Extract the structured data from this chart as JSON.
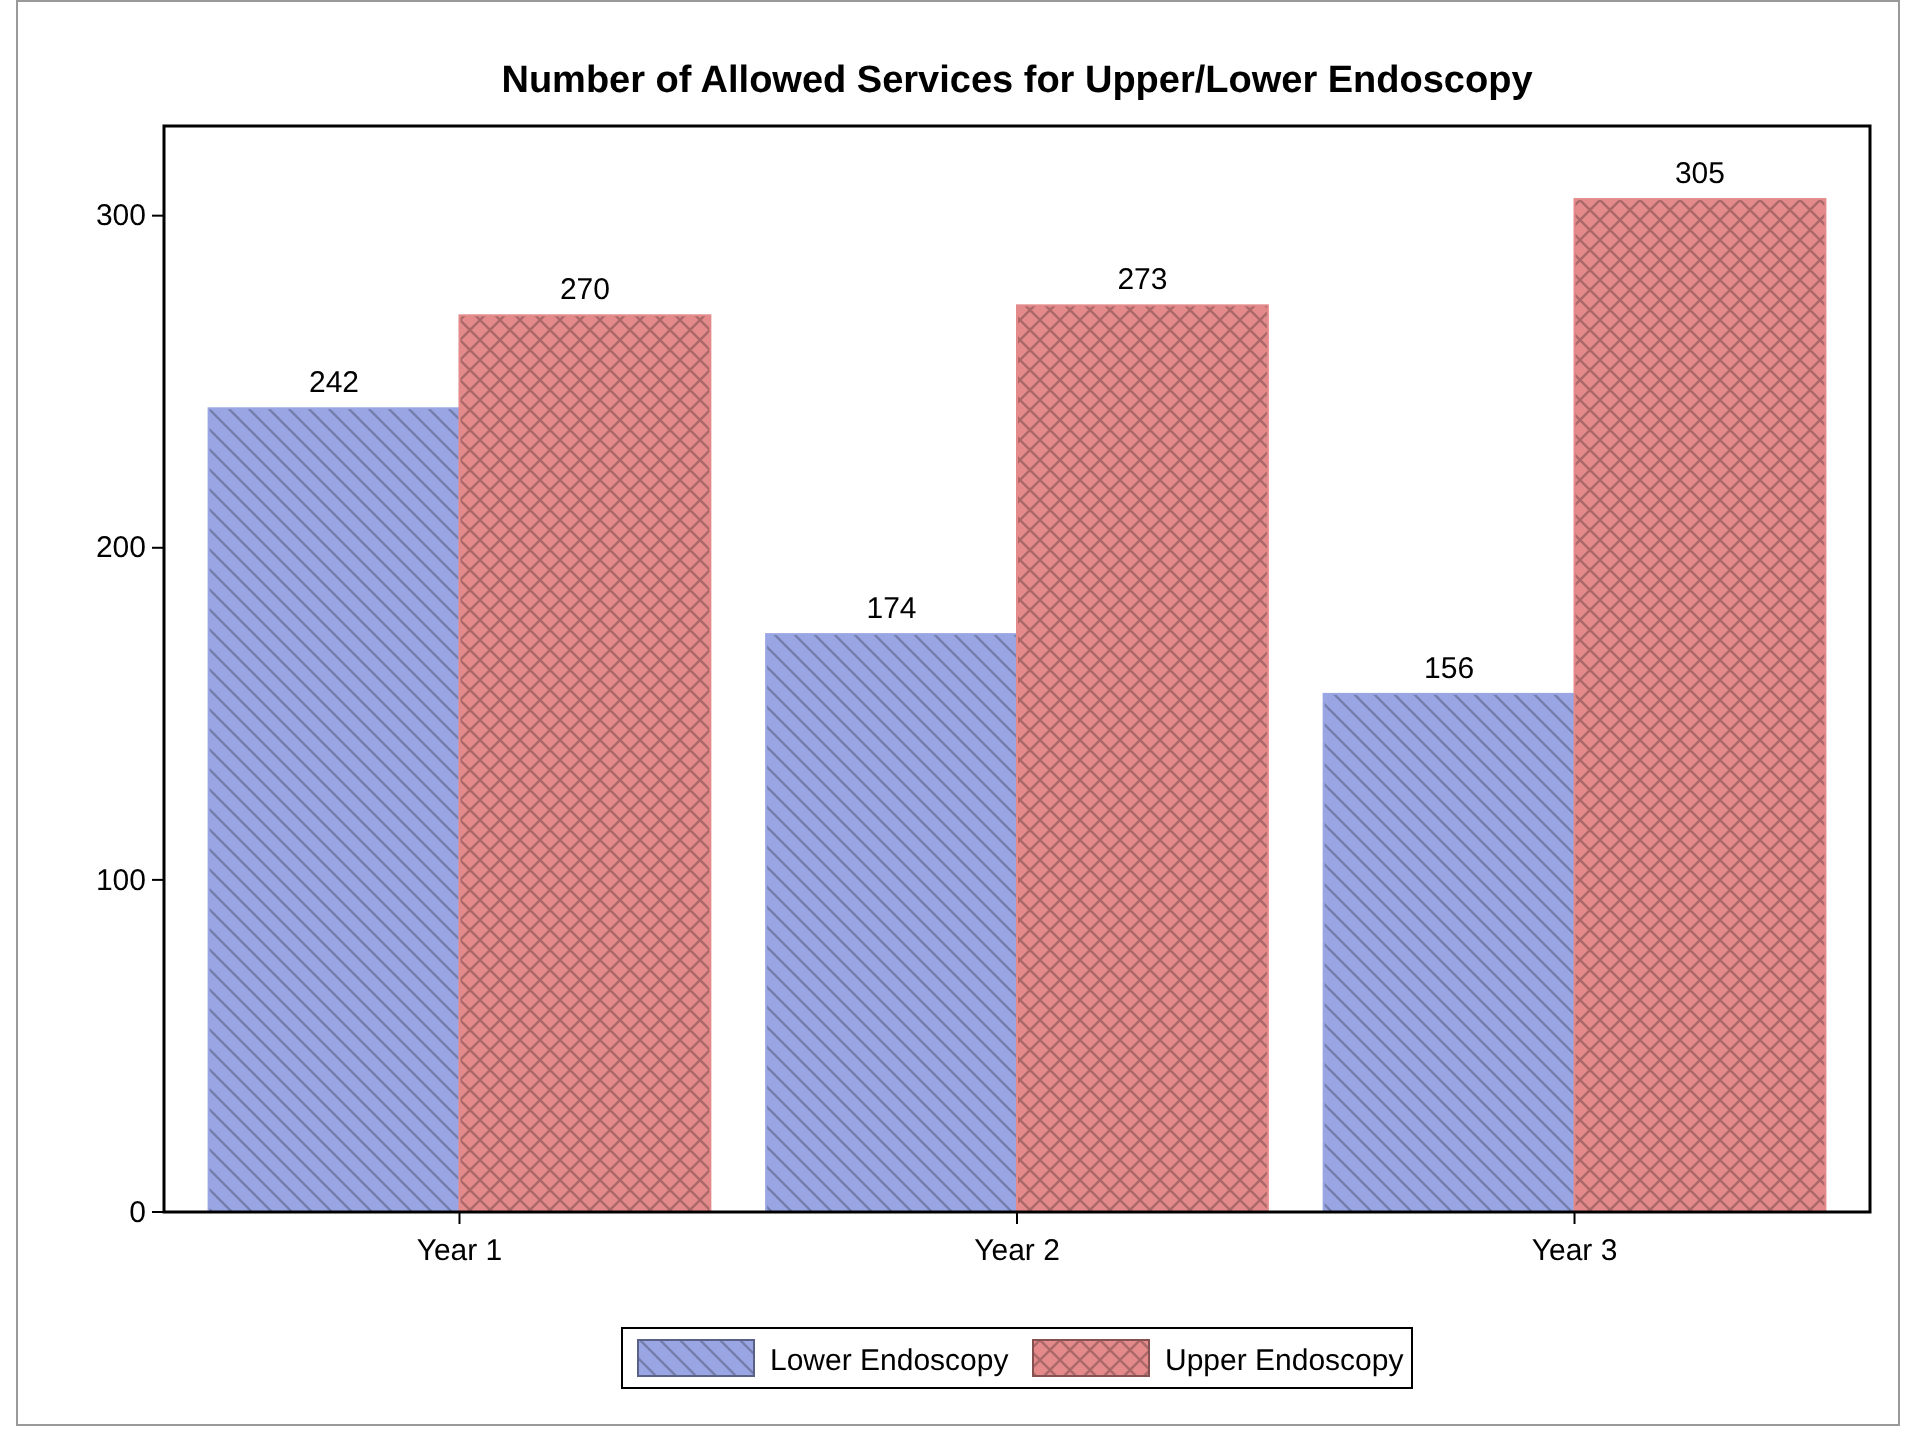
{
  "chart_data": {
    "type": "bar",
    "title": "Number of Allowed Services for Upper/Lower Endoscopy",
    "categories": [
      "Year 1",
      "Year 2",
      "Year 3"
    ],
    "series": [
      {
        "name": "Lower Endoscopy",
        "color": "#9aa6e4",
        "values": [
          242,
          174,
          156
        ]
      },
      {
        "name": "Upper Endoscopy",
        "color": "#e48a8a",
        "values": [
          270,
          273,
          305
        ]
      }
    ],
    "ylim": [
      0,
      327
    ],
    "yticks": [
      0,
      100,
      200,
      300
    ],
    "data_labels": true,
    "legend": "bottom",
    "grid": false
  }
}
